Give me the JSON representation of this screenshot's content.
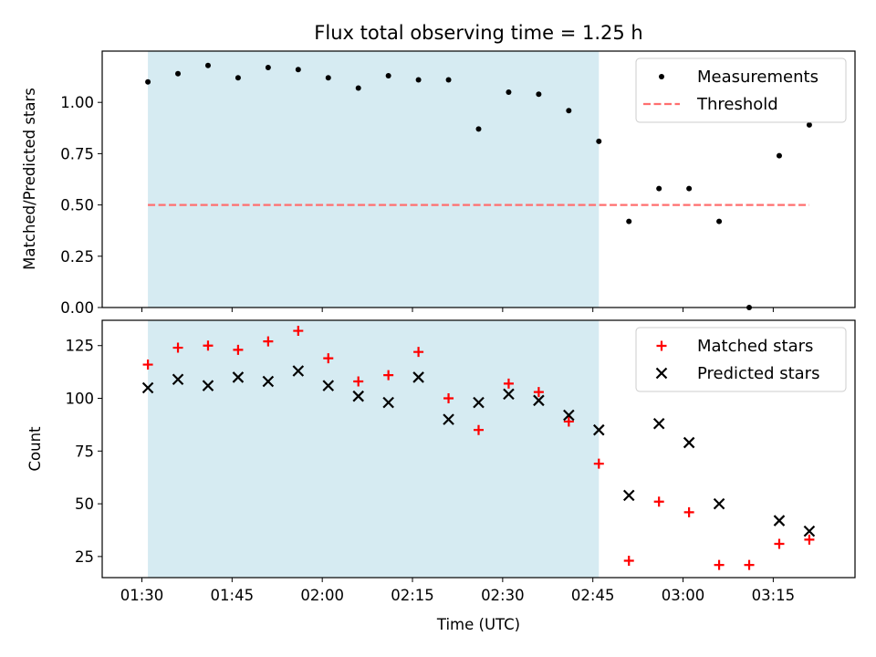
{
  "chart_data": [
    {
      "type": "scatter",
      "title": "Flux total observing time = 1.25 h",
      "ylabel": "Matched/Predicted stars",
      "ylim": [
        0,
        1.25
      ],
      "yticks": [
        0.0,
        0.25,
        0.5,
        0.75,
        1.0
      ],
      "ytick_labels": [
        "0.00",
        "0.25",
        "0.50",
        "0.75",
        "1.00"
      ],
      "shaded_span": {
        "start": "01:31",
        "end": "02:46",
        "color": "#add8e6"
      },
      "legend_position": "top-right",
      "series": [
        {
          "name": "Measurements",
          "marker": "dot",
          "color": "#000000",
          "x": [
            "01:31",
            "01:36",
            "01:41",
            "01:46",
            "01:51",
            "01:56",
            "02:01",
            "02:06",
            "02:11",
            "02:16",
            "02:21",
            "02:26",
            "02:31",
            "02:36",
            "02:41",
            "02:46",
            "02:51",
            "02:56",
            "03:01",
            "03:06",
            "03:11",
            "03:16",
            "03:21"
          ],
          "y": [
            1.1,
            1.14,
            1.18,
            1.12,
            1.17,
            1.16,
            1.12,
            1.07,
            1.13,
            1.11,
            1.11,
            0.87,
            1.05,
            1.04,
            0.96,
            0.81,
            0.42,
            0.58,
            0.58,
            0.42,
            0.0,
            0.74,
            0.89
          ]
        },
        {
          "name": "Threshold",
          "marker": "dashed-line",
          "color": "#ff6f6f",
          "x": [
            "01:31",
            "03:21"
          ],
          "y": [
            0.5,
            0.5
          ]
        }
      ]
    },
    {
      "type": "scatter",
      "xlabel": "Time (UTC)",
      "ylabel": "Count",
      "ylim": [
        15,
        137
      ],
      "yticks": [
        25,
        50,
        75,
        100,
        125
      ],
      "ytick_labels": [
        "25",
        "50",
        "75",
        "100",
        "125"
      ],
      "xticks": [
        "01:30",
        "01:45",
        "02:00",
        "02:15",
        "02:30",
        "02:45",
        "03:00",
        "03:15"
      ],
      "shaded_span": {
        "start": "01:31",
        "end": "02:46",
        "color": "#add8e6"
      },
      "legend_position": "top-right",
      "series": [
        {
          "name": "Matched stars",
          "marker": "plus",
          "color": "#ff0000",
          "x": [
            "01:31",
            "01:36",
            "01:41",
            "01:46",
            "01:51",
            "01:56",
            "02:01",
            "02:06",
            "02:11",
            "02:16",
            "02:21",
            "02:26",
            "02:31",
            "02:36",
            "02:41",
            "02:46",
            "02:51",
            "02:56",
            "03:01",
            "03:06",
            "03:11",
            "03:16",
            "03:21"
          ],
          "y": [
            116,
            124,
            125,
            123,
            127,
            132,
            119,
            108,
            111,
            122,
            100,
            85,
            107,
            103,
            89,
            69,
            23,
            51,
            46,
            21,
            21,
            31,
            33
          ]
        },
        {
          "name": "Predicted stars",
          "marker": "x",
          "color": "#000000",
          "x": [
            "01:31",
            "01:36",
            "01:41",
            "01:46",
            "01:51",
            "01:56",
            "02:01",
            "02:06",
            "02:11",
            "02:16",
            "02:21",
            "02:26",
            "02:31",
            "02:36",
            "02:41",
            "02:46",
            "02:51",
            "02:56",
            "03:01",
            "03:06",
            "03:11",
            "03:16",
            "03:21"
          ],
          "y": [
            105,
            109,
            106,
            110,
            108,
            113,
            106,
            101,
            98,
            110,
            90,
            98,
            102,
            99,
            92,
            85,
            54,
            88,
            79,
            50,
            null,
            42,
            37
          ]
        }
      ]
    }
  ]
}
